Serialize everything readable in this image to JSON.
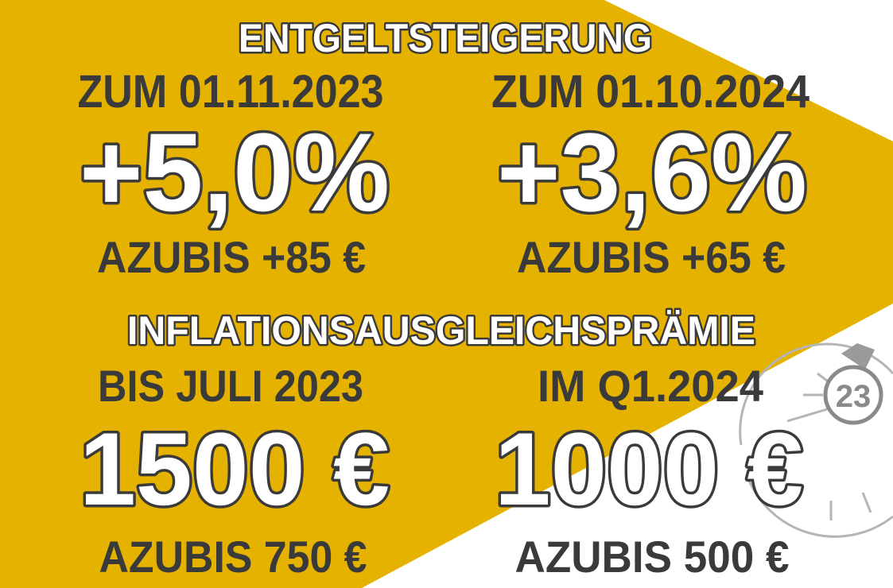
{
  "sections": [
    {
      "title": "ENTGELTSTEIGERUNG",
      "columns": [
        {
          "date": "ZUM 01.11.2023",
          "amount": "+5,0%",
          "trainees": "AZUBIS +85 €"
        },
        {
          "date": "ZUM 01.10.2024",
          "amount": "+3,6%",
          "trainees": "AZUBIS +65 €"
        }
      ]
    },
    {
      "title": "INFLATIONSAUSGLEICHSPRÄMIE",
      "columns": [
        {
          "date": "BIS JULI 2023",
          "amount": "1500 €",
          "trainees": "AZUBIS 750 €"
        },
        {
          "date": "IM Q1.2024",
          "amount": "1000 €",
          "trainees": "AZUBIS 500 €"
        }
      ]
    }
  ],
  "badge": "23"
}
